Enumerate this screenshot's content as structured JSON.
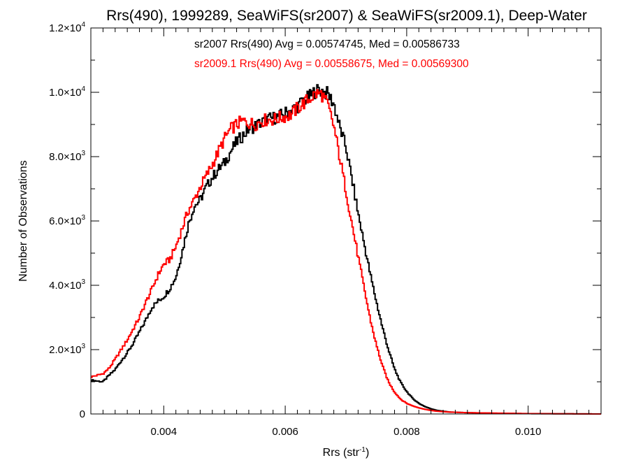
{
  "chart_data": {
    "type": "line",
    "step": true,
    "title": "Rrs(490), 1999289, SeaWiFS(sr2007) & SeaWiFS(sr2009.1), Deep-Water",
    "xlabel": "Rrs (str",
    "xlabel_sup": "-1",
    "xlabel_tail": ")",
    "ylabel": "Number of Observations",
    "xlim": [
      0.0028,
      0.0112
    ],
    "ylim": [
      0,
      12000
    ],
    "grid": false,
    "legend_position": "top-center",
    "x_ticks": [
      {
        "value": 0.004,
        "label": "0.004"
      },
      {
        "value": 0.006,
        "label": "0.006"
      },
      {
        "value": 0.008,
        "label": "0.008"
      },
      {
        "value": 0.01,
        "label": "0.010"
      }
    ],
    "y_ticks": [
      {
        "value": 0,
        "mant": "0",
        "exp": ""
      },
      {
        "value": 2000,
        "mant": "2.0×10",
        "exp": "3"
      },
      {
        "value": 4000,
        "mant": "4.0×10",
        "exp": "3"
      },
      {
        "value": 6000,
        "mant": "6.0×10",
        "exp": "3"
      },
      {
        "value": 8000,
        "mant": "8.0×10",
        "exp": "3"
      },
      {
        "value": 10000,
        "mant": "1.0×10",
        "exp": "4"
      },
      {
        "value": 12000,
        "mant": "1.2×10",
        "exp": "4"
      }
    ],
    "series": [
      {
        "name": "sr2007",
        "color": "#000000",
        "legend_text": "sr2007 Rrs(490) Avg = 0.00574745, Med = 0.00586733",
        "points": [
          [
            0.0028,
            1050
          ],
          [
            0.003,
            1000
          ],
          [
            0.0031,
            1200
          ],
          [
            0.0032,
            1380
          ],
          [
            0.0033,
            1650
          ],
          [
            0.0034,
            1900
          ],
          [
            0.0035,
            2200
          ],
          [
            0.0036,
            2550
          ],
          [
            0.0037,
            2900
          ],
          [
            0.0038,
            3300
          ],
          [
            0.0039,
            3500
          ],
          [
            0.004,
            3650
          ],
          [
            0.0041,
            3900
          ],
          [
            0.0042,
            4250
          ],
          [
            0.0043,
            5000
          ],
          [
            0.0044,
            5850
          ],
          [
            0.0045,
            6450
          ],
          [
            0.0046,
            6650
          ],
          [
            0.0047,
            7050
          ],
          [
            0.0048,
            7350
          ],
          [
            0.0049,
            7600
          ],
          [
            0.005,
            7800
          ],
          [
            0.0051,
            8150
          ],
          [
            0.0052,
            8450
          ],
          [
            0.0053,
            8650
          ],
          [
            0.0054,
            8850
          ],
          [
            0.0055,
            8950
          ],
          [
            0.0056,
            9050
          ],
          [
            0.0057,
            9150
          ],
          [
            0.0058,
            9200
          ],
          [
            0.0059,
            9250
          ],
          [
            0.006,
            9350
          ],
          [
            0.0061,
            9450
          ],
          [
            0.0062,
            9550
          ],
          [
            0.0063,
            9750
          ],
          [
            0.0064,
            9850
          ],
          [
            0.0065,
            10050
          ],
          [
            0.0066,
            10050
          ],
          [
            0.0067,
            9950
          ],
          [
            0.0068,
            9650
          ],
          [
            0.0069,
            8900
          ],
          [
            0.007,
            8300
          ],
          [
            0.0071,
            7300
          ],
          [
            0.0072,
            6250
          ],
          [
            0.0073,
            5300
          ],
          [
            0.0074,
            4350
          ],
          [
            0.0075,
            3500
          ],
          [
            0.0076,
            2700
          ],
          [
            0.0077,
            2000
          ],
          [
            0.0078,
            1400
          ],
          [
            0.0079,
            980
          ],
          [
            0.008,
            700
          ],
          [
            0.0081,
            480
          ],
          [
            0.0082,
            330
          ],
          [
            0.0083,
            230
          ],
          [
            0.0084,
            160
          ],
          [
            0.0085,
            110
          ],
          [
            0.0087,
            60
          ],
          [
            0.009,
            40
          ],
          [
            0.0095,
            20
          ],
          [
            0.01,
            10
          ],
          [
            0.0105,
            6
          ],
          [
            0.0112,
            0
          ]
        ]
      },
      {
        "name": "sr2009.1",
        "color": "#ff0000",
        "legend_text": "sr2009.1 Rrs(490) Avg = 0.00558675, Med = 0.00569300",
        "points": [
          [
            0.0028,
            1150
          ],
          [
            0.003,
            1250
          ],
          [
            0.0031,
            1420
          ],
          [
            0.0032,
            1700
          ],
          [
            0.0033,
            2000
          ],
          [
            0.0034,
            2300
          ],
          [
            0.0035,
            2650
          ],
          [
            0.0036,
            3000
          ],
          [
            0.0037,
            3450
          ],
          [
            0.0038,
            3850
          ],
          [
            0.0039,
            4300
          ],
          [
            0.004,
            4650
          ],
          [
            0.0041,
            4800
          ],
          [
            0.0042,
            5200
          ],
          [
            0.0043,
            5750
          ],
          [
            0.0044,
            6300
          ],
          [
            0.0045,
            6650
          ],
          [
            0.0046,
            7050
          ],
          [
            0.0047,
            7400
          ],
          [
            0.0048,
            7750
          ],
          [
            0.0049,
            8150
          ],
          [
            0.005,
            8550
          ],
          [
            0.0051,
            8850
          ],
          [
            0.0052,
            9000
          ],
          [
            0.0053,
            9100
          ],
          [
            0.0054,
            9050
          ],
          [
            0.0055,
            9000
          ],
          [
            0.0056,
            9100
          ],
          [
            0.0057,
            9150
          ],
          [
            0.0058,
            9150
          ],
          [
            0.0059,
            9200
          ],
          [
            0.006,
            9250
          ],
          [
            0.0061,
            9300
          ],
          [
            0.0062,
            9500
          ],
          [
            0.0063,
            9650
          ],
          [
            0.0064,
            9800
          ],
          [
            0.0065,
            9950
          ],
          [
            0.0066,
            9950
          ],
          [
            0.0067,
            9600
          ],
          [
            0.0068,
            8950
          ],
          [
            0.0069,
            7950
          ],
          [
            0.007,
            6950
          ],
          [
            0.0071,
            5900
          ],
          [
            0.0072,
            4900
          ],
          [
            0.0073,
            3900
          ],
          [
            0.0074,
            2950
          ],
          [
            0.0075,
            2150
          ],
          [
            0.0076,
            1500
          ],
          [
            0.0077,
            1000
          ],
          [
            0.0078,
            680
          ],
          [
            0.0079,
            460
          ],
          [
            0.008,
            330
          ],
          [
            0.0081,
            250
          ],
          [
            0.0082,
            190
          ],
          [
            0.0083,
            145
          ],
          [
            0.0084,
            110
          ],
          [
            0.0085,
            85
          ],
          [
            0.0087,
            60
          ],
          [
            0.009,
            40
          ],
          [
            0.0095,
            25
          ],
          [
            0.01,
            12
          ],
          [
            0.0105,
            6
          ],
          [
            0.0112,
            0
          ]
        ]
      }
    ]
  }
}
